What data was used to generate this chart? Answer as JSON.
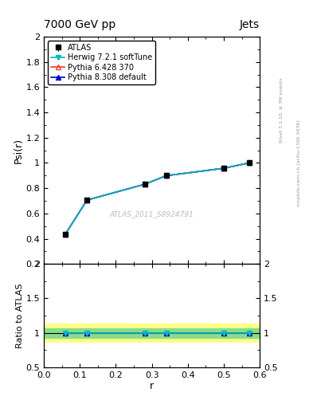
{
  "title": "7000 GeV pp",
  "title_right": "Jets",
  "ylabel_main": "Psi(r)",
  "ylabel_ratio": "Ratio to ATLAS",
  "xlabel": "r",
  "watermark": "ATLAS_2011_S8924791",
  "right_label_top": "Rivet 3.1.10, ≥ 3M events",
  "right_label_bot": "mcplots.cern.ch [arXiv:1306.3436]",
  "x_data": [
    0.06,
    0.12,
    0.28,
    0.34,
    0.5,
    0.57
  ],
  "atlas_y": [
    0.437,
    0.706,
    0.831,
    0.899,
    0.958,
    1.0
  ],
  "atlas_yerr": [
    0.012,
    0.008,
    0.006,
    0.005,
    0.004,
    0.003
  ],
  "herwig_y": [
    0.437,
    0.706,
    0.831,
    0.899,
    0.958,
    1.0
  ],
  "pythia6_y": [
    0.437,
    0.706,
    0.831,
    0.899,
    0.958,
    1.0
  ],
  "pythia8_y": [
    0.437,
    0.706,
    0.831,
    0.899,
    0.958,
    1.0
  ],
  "atlas_color": "#000000",
  "herwig_color": "#00BBBB",
  "pythia6_color": "#FF3333",
  "pythia8_color": "#0000CC",
  "ylim_main": [
    0.2,
    2.0
  ],
  "ylim_ratio": [
    0.5,
    2.0
  ],
  "xlim": [
    0.0,
    0.6
  ],
  "band_yellow": [
    0.87,
    1.13
  ],
  "band_green": [
    0.93,
    1.07
  ],
  "main_yticks": [
    0.2,
    0.4,
    0.6,
    0.8,
    1.0,
    1.2,
    1.4,
    1.6,
    1.8,
    2.0
  ],
  "ratio_yticks": [
    0.5,
    1.0,
    1.5,
    2.0
  ],
  "ratio_yticklabels": [
    "0.5",
    "1",
    "1.5",
    "2"
  ],
  "xticks": [
    0.0,
    0.1,
    0.2,
    0.3,
    0.4,
    0.5,
    0.6
  ]
}
